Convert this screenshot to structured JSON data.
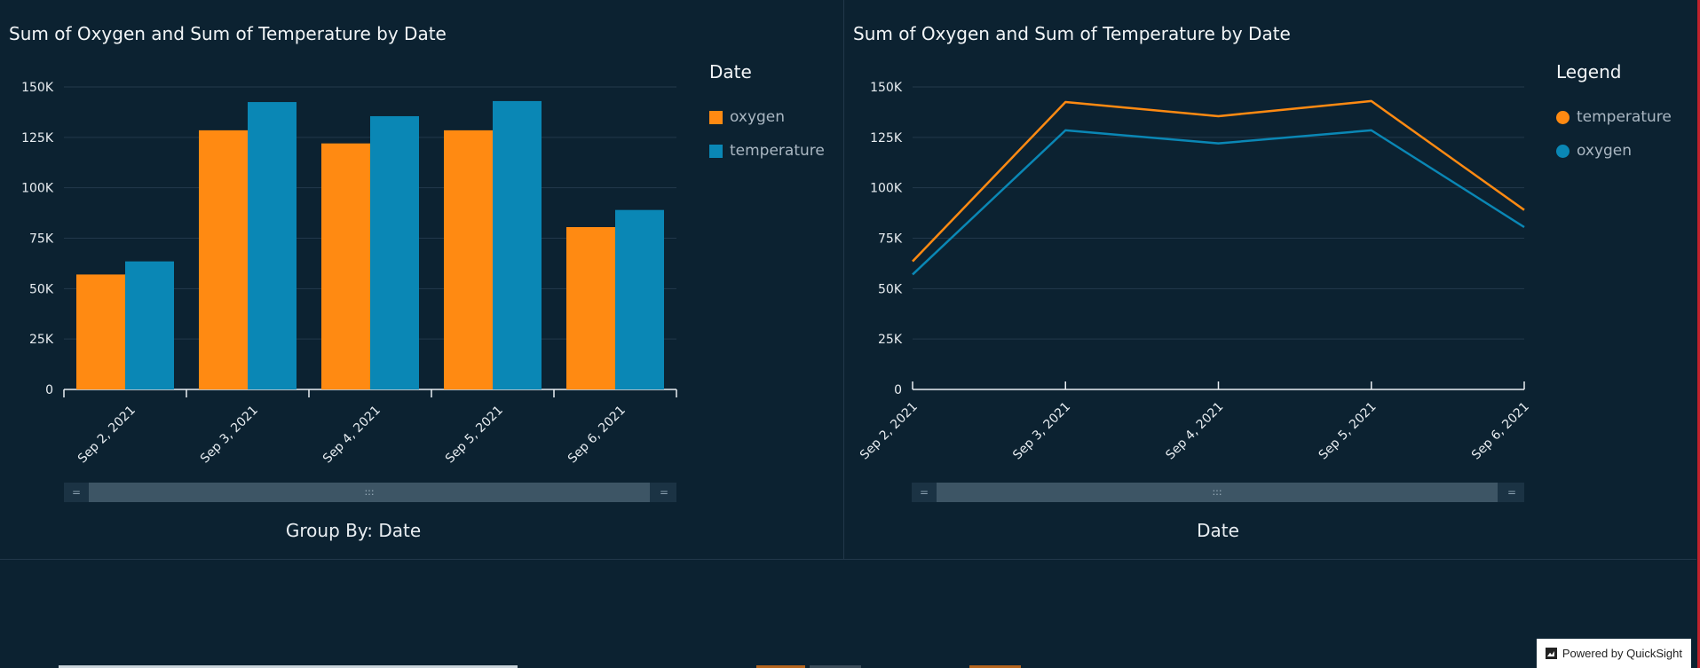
{
  "colors": {
    "orange": "#ff8a12",
    "blue": "#0a87b5",
    "background": "#0c2231",
    "grid": "#22384a"
  },
  "left": {
    "title": "Sum of Oxygen and Sum of Temperature by Date",
    "legend_title": "Date",
    "legend": [
      "oxygen",
      "temperature"
    ],
    "footer": "Group By: Date",
    "scroll_thumb_glyph": ":::",
    "scroll_handle_glyph": "="
  },
  "right": {
    "title": "Sum of Oxygen and Sum of Temperature by Date",
    "legend_title": "Legend",
    "legend": [
      "temperature",
      "oxygen"
    ],
    "footer": "Date",
    "scroll_thumb_glyph": ":::",
    "scroll_handle_glyph": "="
  },
  "badge": {
    "label": "Powered by QuickSight",
    "icon": "quicksight-icon"
  },
  "chart_data": [
    {
      "type": "bar",
      "title": "Sum of Oxygen and Sum of Temperature by Date",
      "categories": [
        "Sep 2, 2021",
        "Sep 3, 2021",
        "Sep 4, 2021",
        "Sep 5, 2021",
        "Sep 6, 2021"
      ],
      "series": [
        {
          "name": "oxygen",
          "values": [
            57000,
            128500,
            122000,
            128500,
            80500
          ],
          "color": "#ff8a12"
        },
        {
          "name": "temperature",
          "values": [
            63500,
            142500,
            135500,
            143000,
            89000
          ],
          "color": "#0a87b5"
        }
      ],
      "ylim": [
        0,
        150000
      ],
      "yticks": [
        "0",
        "25K",
        "50K",
        "75K",
        "100K",
        "125K",
        "150K"
      ],
      "xlabel": "Group By: Date",
      "legend_placement": "right",
      "grid": true
    },
    {
      "type": "line",
      "title": "Sum of Oxygen and Sum of Temperature by Date",
      "categories": [
        "Sep 2, 2021",
        "Sep 3, 2021",
        "Sep 4, 2021",
        "Sep 5, 2021",
        "Sep 6, 2021"
      ],
      "series": [
        {
          "name": "temperature",
          "values": [
            63500,
            142500,
            135500,
            143000,
            89000
          ],
          "color": "#ff8a12"
        },
        {
          "name": "oxygen",
          "values": [
            57000,
            128500,
            122000,
            128500,
            80500
          ],
          "color": "#0a87b5"
        }
      ],
      "ylim": [
        0,
        150000
      ],
      "yticks": [
        "0",
        "25K",
        "50K",
        "75K",
        "100K",
        "125K",
        "150K"
      ],
      "xlabel": "Date",
      "legend_placement": "right",
      "grid": true
    }
  ]
}
